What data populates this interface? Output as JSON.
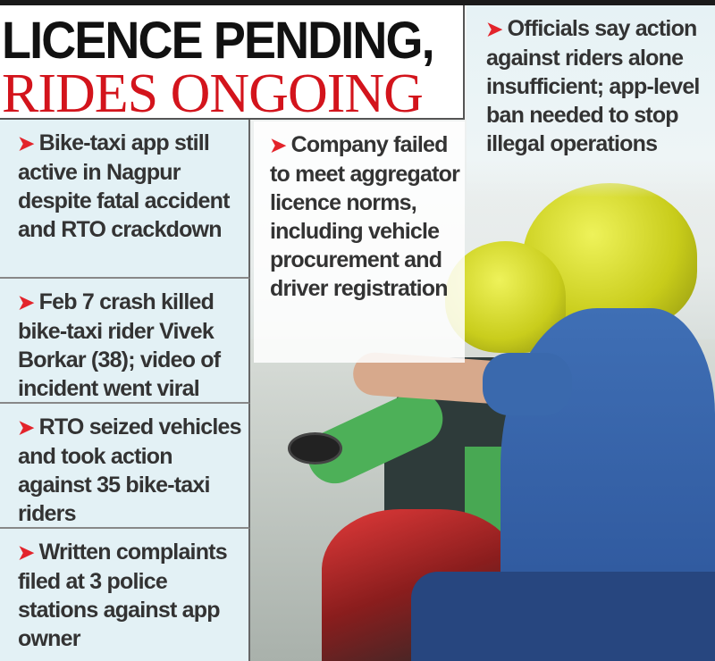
{
  "headline": {
    "line1": "LICENCE PENDING,",
    "line2": "RIDES ONGOING"
  },
  "bullets_left": [
    "Bike-taxi app still active in Nagpur despite fatal accident and RTO crackdown",
    "Feb 7 crash killed bike-taxi rider Vivek Borkar (38); video of incident went viral",
    "RTO seized vehicles and took action against 35 bike-taxi riders",
    "Written complaints filed at 3 police stations against app owner"
  ],
  "bullet_middle": "Company failed to meet aggregator licence norms, including vehicle procurement and driver registration",
  "bullet_right": "Officials say action against riders alone insufficient; app-level ban needed to stop illegal operations",
  "bullet_icon": "red-arrowhead-icon",
  "colors": {
    "headline_red": "#d3141c",
    "bullet_arrow": "#e3242b",
    "box_bg": "#e3f1f5",
    "text": "#333333"
  }
}
